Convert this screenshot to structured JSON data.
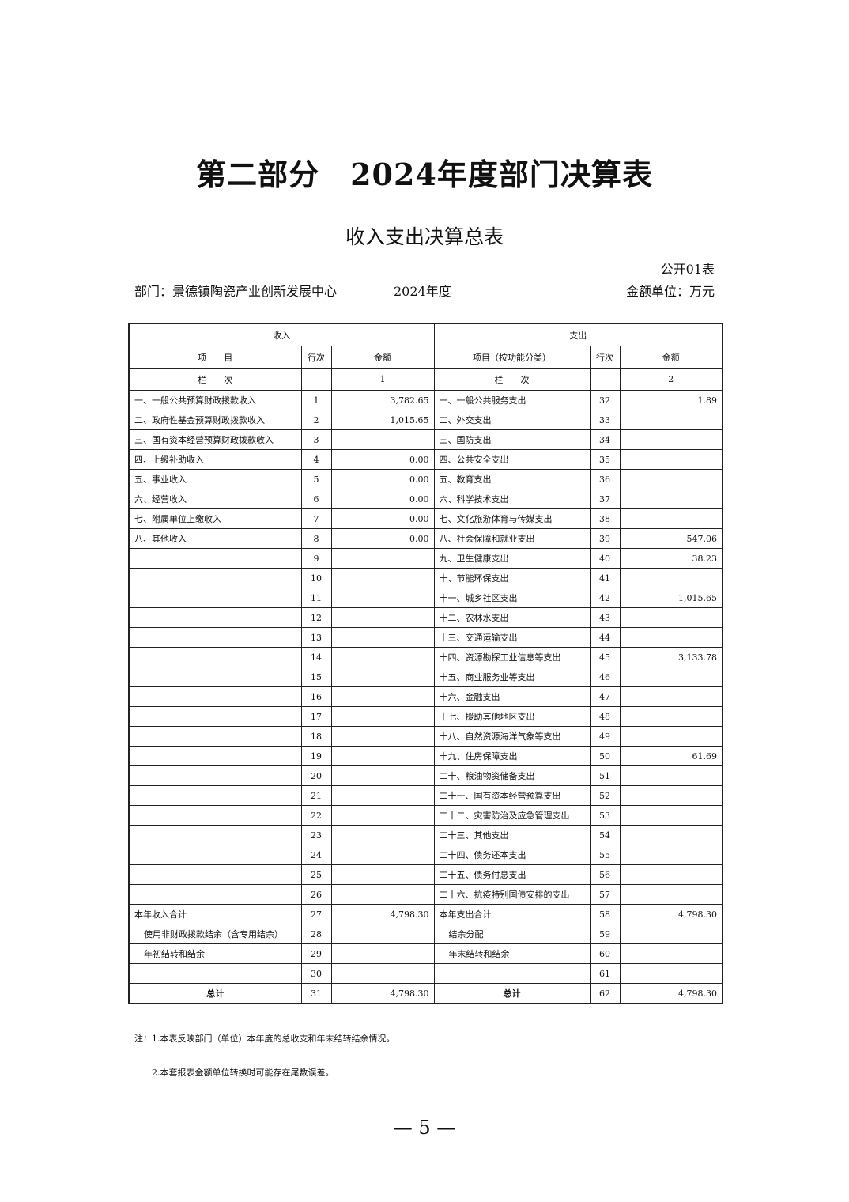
{
  "title": "第二部分　2024年度部门决算表",
  "subtitle": "收入支出决算总表",
  "table_no": "公开01表",
  "department": "部门：景德镇陶瓷产业创新发展中心",
  "year": "2024年度",
  "unit": "金额单位：万元",
  "header": {
    "income": "收入",
    "expense": "支出",
    "item": "项　　目",
    "row_no": "行次",
    "amount": "金额",
    "item_func": "项目（按功能分类）",
    "column_label": "栏　　次",
    "income_col": "1",
    "expense_col": "2"
  },
  "rows": [
    [
      "一、一般公共预算财政拨款收入",
      "1",
      "3,782.65",
      "一、一般公共服务支出",
      "32",
      "1.89"
    ],
    [
      "二、政府性基金预算财政拨款收入",
      "2",
      "1,015.65",
      "二、外交支出",
      "33",
      ""
    ],
    [
      "三、国有资本经营预算财政拨款收入",
      "3",
      "",
      "三、国防支出",
      "34",
      ""
    ],
    [
      "四、上级补助收入",
      "4",
      "0.00",
      "四、公共安全支出",
      "35",
      ""
    ],
    [
      "五、事业收入",
      "5",
      "0.00",
      "五、教育支出",
      "36",
      ""
    ],
    [
      "六、经营收入",
      "6",
      "0.00",
      "六、科学技术支出",
      "37",
      ""
    ],
    [
      "七、附属单位上缴收入",
      "7",
      "0.00",
      "七、文化旅游体育与传媒支出",
      "38",
      ""
    ],
    [
      "八、其他收入",
      "8",
      "0.00",
      "八、社会保障和就业支出",
      "39",
      "547.06"
    ],
    [
      "",
      "9",
      "",
      "九、卫生健康支出",
      "40",
      "38.23"
    ],
    [
      "",
      "10",
      "",
      "十、节能环保支出",
      "41",
      ""
    ],
    [
      "",
      "11",
      "",
      "十一、城乡社区支出",
      "42",
      "1,015.65"
    ],
    [
      "",
      "12",
      "",
      "十二、农林水支出",
      "43",
      ""
    ],
    [
      "",
      "13",
      "",
      "十三、交通运输支出",
      "44",
      ""
    ],
    [
      "",
      "14",
      "",
      "十四、资源勘探工业信息等支出",
      "45",
      "3,133.78"
    ],
    [
      "",
      "15",
      "",
      "十五、商业服务业等支出",
      "46",
      ""
    ],
    [
      "",
      "16",
      "",
      "十六、金融支出",
      "47",
      ""
    ],
    [
      "",
      "17",
      "",
      "十七、援助其他地区支出",
      "48",
      ""
    ],
    [
      "",
      "18",
      "",
      "十八、自然资源海洋气象等支出",
      "49",
      ""
    ],
    [
      "",
      "19",
      "",
      "十九、住房保障支出",
      "50",
      "61.69"
    ],
    [
      "",
      "20",
      "",
      "二十、粮油物资储备支出",
      "51",
      ""
    ],
    [
      "",
      "21",
      "",
      "二十一、国有资本经营预算支出",
      "52",
      ""
    ],
    [
      "",
      "22",
      "",
      "二十二、灾害防治及应急管理支出",
      "53",
      ""
    ],
    [
      "",
      "23",
      "",
      "二十三、其他支出",
      "54",
      ""
    ],
    [
      "",
      "24",
      "",
      "二十四、债务还本支出",
      "55",
      ""
    ],
    [
      "",
      "25",
      "",
      "二十五、债务付息支出",
      "56",
      ""
    ],
    [
      "",
      "26",
      "",
      "二十六、抗疫特别国债安排的支出",
      "57",
      ""
    ],
    [
      "本年收入合计",
      "27",
      "4,798.30",
      "本年支出合计",
      "58",
      "4,798.30"
    ],
    [
      "使用非财政拨款结余（含专用结余）",
      "28",
      "",
      "结余分配",
      "59",
      ""
    ],
    [
      "年初结转和结余",
      "29",
      "",
      "年末结转和结余",
      "60",
      ""
    ],
    [
      "",
      "30",
      "",
      "",
      "61",
      ""
    ],
    [
      "总计",
      "31",
      "4,798.30",
      "总计",
      "62",
      "4,798.30"
    ]
  ],
  "notes": [
    "注：1.本表反映部门（单位）本年度的总收支和年末结转结余情况。",
    "2.本套报表金额单位转换时可能存在尾数误差。"
  ],
  "page_number": "— 5 —"
}
